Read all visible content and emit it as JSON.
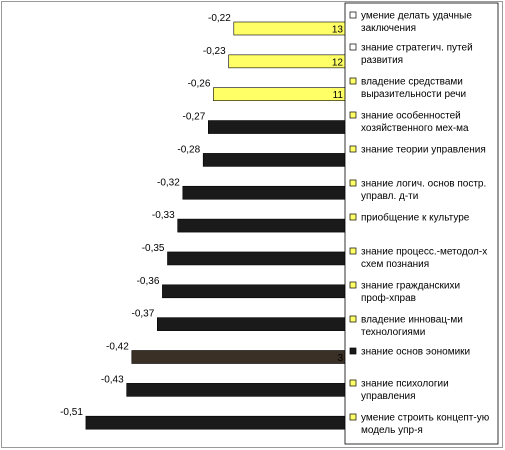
{
  "chart_data": {
    "type": "bar",
    "orientation": "horizontal",
    "xlim": [
      -0.55,
      0
    ],
    "grid": false,
    "legend_placement": "right",
    "title": "",
    "xlabel": "",
    "ylabel": "",
    "categories": [
      "умение делать удачные заключения",
      "знание стратегич. путей развития",
      "владение средствами выразительности речи",
      "знание особенностей хозяйственного мех-ма",
      "знание теории управления",
      "знание логич. основ постр. управл. д-ти",
      "приобщение к культуре",
      "знание процесс.-методол-х схем познания",
      "знание гражданскихи проф-хправ",
      "владение инновац-ми технологиями",
      "знание основ эономики",
      "знание психологии управления",
      "умение строить концепт-ую модель упр-я"
    ],
    "values": [
      -0.22,
      -0.23,
      -0.26,
      -0.27,
      -0.28,
      -0.32,
      -0.33,
      -0.35,
      -0.36,
      -0.37,
      -0.42,
      -0.43,
      -0.51
    ],
    "value_labels": [
      "-0,22",
      "-0,23",
      "-0,26",
      "-0,27",
      "-0,28",
      "-0,32",
      "-0,33",
      "-0,35",
      "-0,36",
      "-0,37",
      "-0,42",
      "-0,43",
      "-0,51"
    ],
    "bar_labels": [
      "13",
      "12",
      "11",
      "",
      "",
      "",
      "",
      "",
      "",
      "",
      "3",
      "",
      ""
    ],
    "bar_colors": [
      "#ffff66",
      "#ffff66",
      "#ffff66",
      "#1a1a1a",
      "#1a1a1a",
      "#1a1a1a",
      "#1a1a1a",
      "#1a1a1a",
      "#1a1a1a",
      "#1a1a1a",
      "#3a3026",
      "#1a1a1a",
      "#1a1a1a"
    ],
    "legend": [
      {
        "label": "умение делать удачные",
        "label2": "заключения",
        "color": "#ffffff"
      },
      {
        "label": "знание стратегич. путей",
        "label2": "развития",
        "color": "#ffffff"
      },
      {
        "label": "владение средствами",
        "label2": "выразительности речи",
        "color": "#ffff66"
      },
      {
        "label": "знание особенностей",
        "label2": "хозяйственного мех-ма",
        "color": "#ffff66"
      },
      {
        "label": "знание теории управления",
        "label2": "",
        "color": "#ffff66"
      },
      {
        "label": "знание логич. основ постр.",
        "label2": "управл. д-ти",
        "color": "#ffff66"
      },
      {
        "label": "приобщение к культуре",
        "label2": "",
        "color": "#ffff66"
      },
      {
        "label": "знание процесс.-методол-х",
        "label2": "схем познания",
        "color": "#ffff66"
      },
      {
        "label": "знание гражданскихи",
        "label2": "проф-хправ",
        "color": "#ffff66"
      },
      {
        "label": "владение инновац-ми",
        "label2": "технологиями",
        "color": "#ffff66"
      },
      {
        "label": "знание основ эономики",
        "label2": "",
        "color": "#1a1a1a"
      },
      {
        "label": "знание психологии",
        "label2": "управления",
        "color": "#ffff66"
      },
      {
        "label": "умение строить концепт-ую",
        "label2": "модель упр-я",
        "color": "#ffff66"
      }
    ]
  }
}
